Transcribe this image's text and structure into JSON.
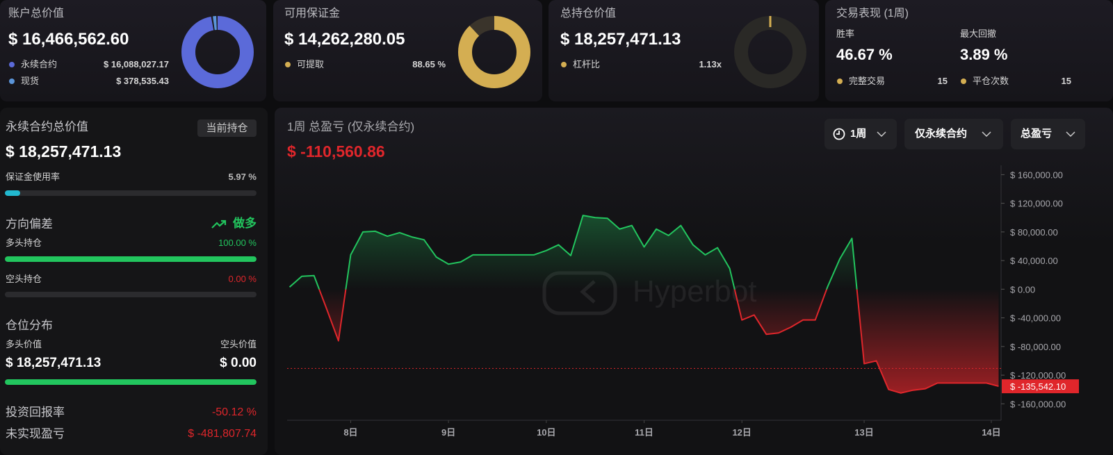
{
  "cards": [
    {
      "title": "账户总价值",
      "value": "$ 16,466,562.60",
      "donut": "share",
      "items": [
        {
          "label": "永续合约",
          "value": {
            "value": 16088027.17,
            "label": "$ 16,088,027.17"
          },
          "color": "#5b6ad9"
        },
        {
          "label": "现货",
          "value": {
            "value": 378535.43,
            "label": "$ 378,535.43"
          },
          "color": "#5b95d9"
        }
      ]
    },
    {
      "title": "可用保证金",
      "value": "$ 14,262,280.05",
      "donut": "percent",
      "items": [
        {
          "label": "可提取",
          "value": {
            "value": 88.65,
            "label": "88.65 %"
          },
          "color": "#d4ae52"
        }
      ]
    },
    {
      "title": "总持仓价值",
      "value": "$ 18,257,471.13",
      "items": [
        {
          "label": "杠杆比",
          "value": {
            "value": 1.13,
            "label": "1.13x"
          },
          "color": "#d4ae52"
        }
      ]
    }
  ],
  "performance": {
    "title": "交易表现 (1周)",
    "color": "#d4ae52",
    "stats": [
      {
        "label": "胜率",
        "value": "46.67 %"
      },
      {
        "label": "最大回撤",
        "value": "3.89 %"
      }
    ],
    "counts": [
      {
        "label": "完整交易",
        "value": 15
      },
      {
        "label": "平仓次数",
        "value": 15
      }
    ]
  },
  "positions": {
    "title": "永续合约总价值",
    "badge": "当前持仓",
    "value": "$ 18,257,471.13",
    "margin_usage": {
      "label": "保证金使用率",
      "value": {
        "value": 5.97,
        "label": "5.97 %"
      },
      "color": "#22b8cf"
    },
    "direction": {
      "title": "方向偏差",
      "bias": "做多",
      "long": {
        "label": "多头持仓",
        "value": {
          "value": 100,
          "label": "100.00 %"
        },
        "color": "#22c55e"
      },
      "short": {
        "label": "空头持仓",
        "value": {
          "value": 0,
          "label": "0.00 %"
        },
        "color": "#e0262b"
      }
    },
    "distribution": {
      "title": "仓位分布",
      "long_label": "多头价值",
      "short_label": "空头价值",
      "long_value": {
        "value": 18257471.13,
        "label": "$ 18,257,471.13"
      },
      "short_value": {
        "value": 0,
        "label": "$ 0.00"
      },
      "color": "#22c55e"
    },
    "roi": {
      "label": "投资回报率",
      "value": "-50.12 %"
    },
    "unrealized": {
      "label": "未实现盈亏",
      "value": "$ -481,807.74"
    }
  },
  "chart_data": {
    "type": "line",
    "title": "1周 总盈亏 (仅永续合约)",
    "total": {
      "value": -110560.86,
      "label": "$ -110,560.86"
    },
    "current": {
      "value": -135542.1,
      "label": "$ -135,542.10"
    },
    "controls": [
      "1周",
      "仅永续合约",
      "总盈亏"
    ],
    "watermark": "Hyperbot",
    "up_color": "#22c55e",
    "down_color": "#e0262b",
    "x": [
      7.375,
      7.5,
      7.625,
      7.75,
      7.875,
      8,
      8.125,
      8.25,
      8.375,
      8.5,
      8.625,
      8.75,
      8.875,
      9,
      9.125,
      9.25,
      9.375,
      9.5,
      9.625,
      9.75,
      9.875,
      10,
      10.125,
      10.25,
      10.375,
      10.5,
      10.625,
      10.75,
      10.875,
      11,
      11.125,
      11.25,
      11.375,
      11.5,
      11.625,
      11.75,
      11.875,
      12,
      12.125,
      12.25,
      12.375,
      12.5,
      12.625,
      12.75,
      12.875,
      13,
      13.125,
      13.25,
      13.375,
      13.5,
      13.625,
      13.75,
      13.875,
      14,
      14.125,
      14.25,
      14.375,
      14.5,
      14.625
    ],
    "values": [
      3000,
      18000,
      19000,
      -26000,
      -72000,
      48000,
      80000,
      81000,
      74000,
      79000,
      73000,
      69000,
      45000,
      35000,
      38000,
      48000,
      48000,
      48000,
      48000,
      48000,
      48000,
      54000,
      62000,
      47000,
      103000,
      100000,
      99000,
      84000,
      89000,
      59000,
      84000,
      75000,
      89000,
      62000,
      48000,
      58000,
      29000,
      -43000,
      -36000,
      -63000,
      -61000,
      -53000,
      -43000,
      -43000,
      3000,
      42000,
      71000,
      -104000,
      -100000,
      -140000,
      -145000,
      -141000,
      -139000,
      -131000,
      -131000,
      -131000,
      -131000,
      -131000,
      -135542.1
    ],
    "xlim": [
      7.35,
      14.65
    ],
    "xticks": [
      {
        "value": 8,
        "label": "8日"
      },
      {
        "value": 9,
        "label": "9日"
      },
      {
        "value": 10,
        "label": "10日"
      },
      {
        "value": 11,
        "label": "11日"
      },
      {
        "value": 12,
        "label": "12日"
      },
      {
        "value": 13.25,
        "label": "13日"
      },
      {
        "value": 14.55,
        "label": "14日"
      }
    ],
    "ylim": [
      -183000,
      173000
    ],
    "yticks": [
      {
        "value": 160000,
        "label": "$ 160,000.00"
      },
      {
        "value": 120000,
        "label": "$ 120,000.00"
      },
      {
        "value": 80000,
        "label": "$ 80,000.00"
      },
      {
        "value": 40000,
        "label": "$ 40,000.00"
      },
      {
        "value": 0,
        "label": "$ 0.00"
      },
      {
        "value": -40000,
        "label": "$ -40,000.00"
      },
      {
        "value": -80000,
        "label": "$ -80,000.00"
      },
      {
        "value": -120000,
        "label": "$ -120,000.00"
      },
      {
        "value": -160000,
        "label": "$ -160,000.00"
      }
    ]
  }
}
